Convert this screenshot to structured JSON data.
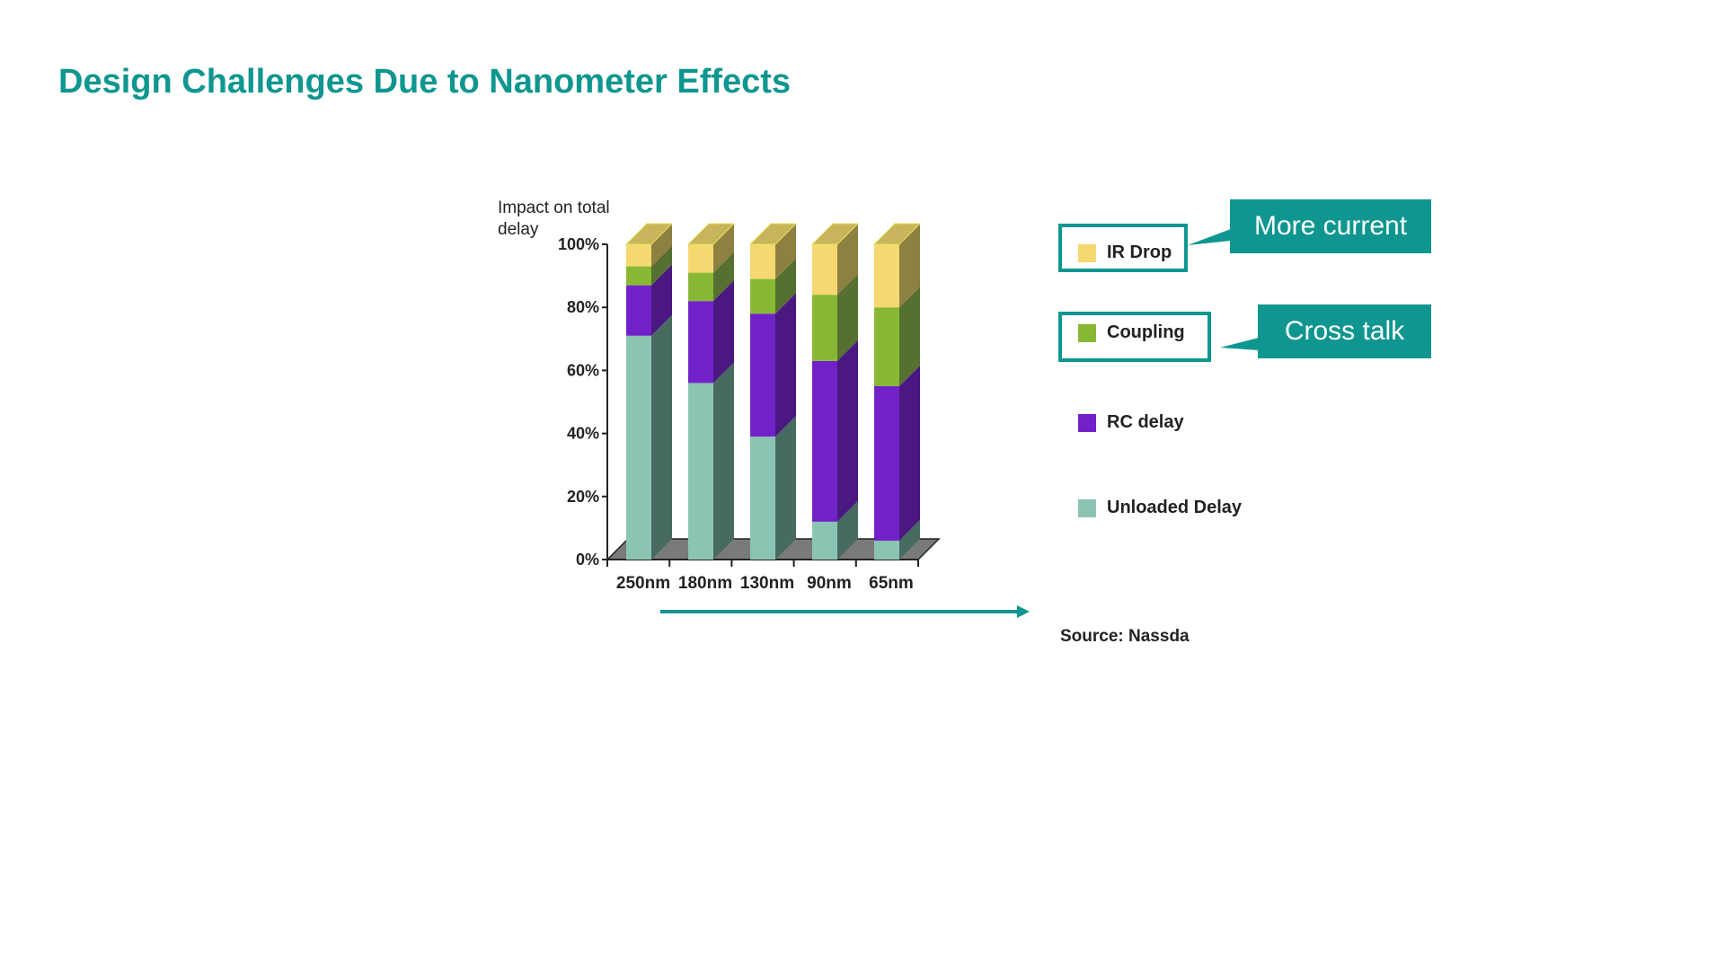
{
  "title": "Design Challenges Due to Nanometer Effects",
  "chart_data": {
    "type": "bar",
    "stacked": true,
    "three_d": true,
    "ylabel": "Impact on total delay",
    "ylim": [
      0,
      100
    ],
    "yticks": [
      "0%",
      "20%",
      "40%",
      "60%",
      "80%",
      "100%"
    ],
    "categories": [
      "250nm",
      "180nm",
      "130nm",
      "90nm",
      "65nm"
    ],
    "series": [
      {
        "name": "Unloaded Delay",
        "values": [
          71,
          56,
          39,
          12,
          6
        ],
        "color": "#8cc4b4",
        "side": "#476b60"
      },
      {
        "name": "RC delay",
        "values": [
          16,
          26,
          39,
          51,
          49
        ],
        "color": "#7022c8",
        "side": "#4a1880"
      },
      {
        "name": "Coupling",
        "values": [
          6,
          9,
          11,
          21,
          25
        ],
        "color": "#88b833",
        "side": "#557030"
      },
      {
        "name": "IR Drop",
        "values": [
          7,
          9,
          11,
          16,
          20
        ],
        "color": "#f5d870",
        "side": "#8d8040"
      }
    ],
    "legend_position": "right",
    "grid": false
  },
  "legend": [
    "IR Drop",
    "Coupling",
    "RC delay",
    "Unloaded Delay"
  ],
  "callouts": {
    "ir_drop": "More current",
    "coupling": "Cross talk"
  },
  "source": "Source: Nassda",
  "accent_color": "#0f9690"
}
